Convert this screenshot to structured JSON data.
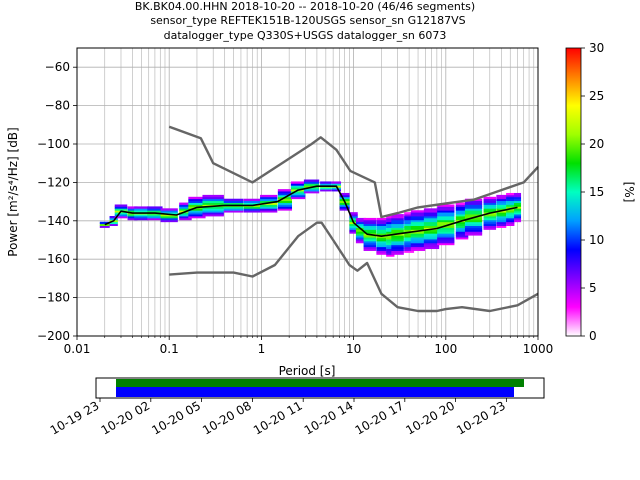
{
  "title": {
    "line1": "BK.BK04.00.HHN   2018-10-20 -- 2018-10-20  (46/46 segments)",
    "line2": "sensor_type REFTEK151B-120USGS sensor_sn G12187VS",
    "line3": "datalogger_type Q330S+USGS datalogger_sn 6073"
  },
  "colorbar": {
    "label": "[%]",
    "ticks": [
      "0",
      "5",
      "10",
      "15",
      "20",
      "25",
      "30"
    ],
    "range": [
      0,
      30
    ],
    "colors": [
      "#ffffff",
      "#ff00ff",
      "#8000ff",
      "#0000ff",
      "#00a0ff",
      "#00ffc0",
      "#00e000",
      "#a0ff00",
      "#ffff00",
      "#ff8000",
      "#ff0000"
    ]
  },
  "timeline": {
    "tick_labels": [
      "10-19 23",
      "10-20 02",
      "10-20 05",
      "10-20 08",
      "10-20 11",
      "10-20 14",
      "10-20 17",
      "10-20 20",
      "10-20 23"
    ],
    "bar_colors": {
      "upper": "#008000",
      "lower": "#0000ff"
    }
  },
  "chart_data": {
    "type": "line",
    "xlabel": "Period [s]",
    "ylabel": "Power [m²/s⁴/Hz] [dB]",
    "x_scale": "log",
    "xlim": [
      0.01,
      1000
    ],
    "ylim": [
      -200,
      -50
    ],
    "grid": true,
    "x_ticks": [
      {
        "v": 0.01,
        "label": "0.01"
      },
      {
        "v": 0.1,
        "label": "0.1"
      },
      {
        "v": 1,
        "label": "1"
      },
      {
        "v": 10,
        "label": "10"
      },
      {
        "v": 100,
        "label": "100"
      },
      {
        "v": 1000,
        "label": "1000"
      }
    ],
    "y_ticks": [
      {
        "v": -60,
        "label": "−60"
      },
      {
        "v": -80,
        "label": "−80"
      },
      {
        "v": -100,
        "label": "−100"
      },
      {
        "v": -120,
        "label": "−120"
      },
      {
        "v": -140,
        "label": "−140"
      },
      {
        "v": -160,
        "label": "−160"
      },
      {
        "v": -180,
        "label": "−180"
      },
      {
        "v": -200,
        "label": "−200"
      }
    ],
    "series": [
      {
        "color": "#666666",
        "x": [
          0.1,
          0.22,
          0.3,
          0.8,
          3.5,
          4.4,
          6.5,
          9.2,
          17,
          20,
          30,
          50,
          100,
          200,
          400,
          700,
          1000
        ],
        "y": [
          -91,
          -97,
          -110,
          -120,
          -100,
          -96.5,
          -103,
          -114,
          -120,
          -138,
          -136,
          -133,
          -131,
          -129,
          -124,
          -120,
          -112
        ]
      },
      {
        "color": "#666666",
        "x": [
          0.1,
          0.2,
          0.5,
          0.8,
          1.4,
          2.5,
          4,
          4.5,
          6,
          9,
          11,
          14,
          20,
          30,
          50,
          80,
          100,
          150,
          300,
          600,
          1000
        ],
        "y": [
          -168,
          -167,
          -167,
          -169,
          -163,
          -148,
          -141,
          -141,
          -150,
          -163,
          -166,
          -162,
          -178,
          -185,
          -187,
          -187,
          -186,
          -185,
          -187,
          -184,
          -178
        ]
      },
      {
        "color": "#000000",
        "x": [
          0.02,
          0.025,
          0.03,
          0.04,
          0.07,
          0.12,
          0.2,
          0.4,
          0.8,
          1.5,
          2.5,
          4,
          6.5,
          8,
          10,
          14,
          20,
          40,
          80,
          150,
          300,
          600
        ],
        "y": [
          -142,
          -140,
          -135,
          -136,
          -136,
          -137,
          -133,
          -132,
          -132,
          -130,
          -124,
          -122,
          -122,
          -130,
          -141,
          -147,
          -148,
          -146,
          -144,
          -140,
          -136,
          -133
        ]
      }
    ],
    "heat_cells": {
      "note": "probabilistic PSD density bands around the mean curve",
      "periods": [
        0.02,
        0.025,
        0.03,
        0.04,
        0.05,
        0.07,
        0.1,
        0.15,
        0.2,
        0.3,
        0.5,
        0.8,
        1.2,
        1.8,
        2.5,
        3.5,
        5,
        6.5,
        8,
        10,
        12,
        15,
        20,
        25,
        30,
        40,
        50,
        70,
        100,
        150,
        200,
        300,
        400,
        500,
        600
      ],
      "centers": [
        -142,
        -140,
        -135,
        -136,
        -136,
        -136,
        -137,
        -135,
        -133,
        -132,
        -132,
        -132,
        -131,
        -129,
        -124,
        -122,
        -122,
        -122,
        -130,
        -141,
        -145,
        -147,
        -148,
        -148,
        -147,
        -146,
        -145,
        -144,
        -142,
        -140,
        -138,
        -136,
        -135,
        -134,
        -133
      ],
      "spreads": [
        1,
        2,
        3,
        3,
        3,
        3,
        3,
        4,
        5,
        5,
        3,
        3,
        4,
        5,
        4,
        3,
        2,
        2,
        4,
        5,
        6,
        8,
        9,
        10,
        10,
        10,
        10,
        10,
        10,
        9,
        9,
        8,
        8,
        8,
        7
      ]
    }
  }
}
